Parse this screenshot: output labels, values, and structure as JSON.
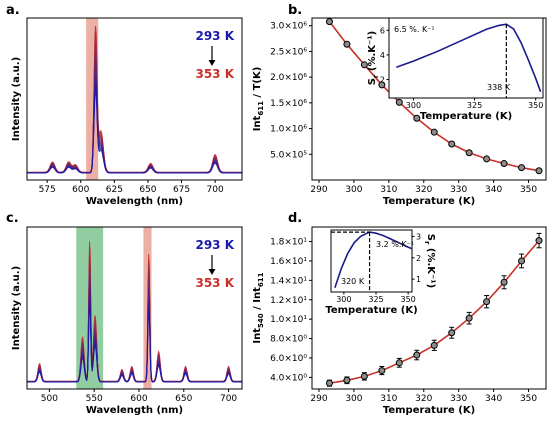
{
  "chart_data": [
    {
      "panel": "a.",
      "type": "line",
      "xlabel": "Wavelength (nm)",
      "ylabel": "Intensity (a.u.)",
      "xticks": [
        "575",
        "600",
        "625",
        "650",
        "675",
        "700"
      ],
      "xlim": [
        560,
        720
      ],
      "legend": {
        "top": "293 K",
        "bottom": "353 K",
        "top_color": "#1a1aa8",
        "bottom_color": "#c8322b",
        "placement": "top-right"
      },
      "highlight_bands": [
        {
          "from": 604,
          "to": 613,
          "color": "#e8a194"
        }
      ],
      "peaks": [
        {
          "x": 579,
          "height": 0.07
        },
        {
          "x": 591,
          "height": 0.07
        },
        {
          "x": 596,
          "height": 0.05
        },
        {
          "x": 611,
          "height": 1.0
        },
        {
          "x": 615,
          "height": 0.28
        },
        {
          "x": 652,
          "height": 0.06
        },
        {
          "x": 700,
          "height": 0.12
        }
      ],
      "series_count": 13,
      "series_colors_from": "#1a1aa8",
      "series_colors_to": "#c8322b"
    },
    {
      "panel": "b.",
      "type": "scatter",
      "xlabel": "Temperature (K)",
      "ylabel": "Int611 / T(K)",
      "ylabel_main": "Int",
      "ylabel_sub": "611",
      "ylabel_rest": " / T(K)",
      "xlim": [
        288,
        355
      ],
      "ylim": [
        0,
        3150000
      ],
      "xticks": [
        "290",
        "300",
        "310",
        "320",
        "330",
        "340",
        "350"
      ],
      "yticks": [
        "5.0×10⁵",
        "1.0×10⁶",
        "1.5×10⁶",
        "2.0×10⁶",
        "2.5×10⁶",
        "3.0×10⁶"
      ],
      "ytick_values": [
        500000,
        1000000,
        1500000,
        2000000,
        2500000,
        3000000
      ],
      "x": [
        293,
        298,
        303,
        308,
        313,
        318,
        323,
        328,
        333,
        338,
        343,
        348,
        353
      ],
      "y": [
        3080000,
        2640000,
        2240000,
        1850000,
        1510000,
        1200000,
        930000,
        700000,
        530000,
        410000,
        320000,
        240000,
        180000
      ],
      "fit_color": "#c8322b",
      "inset": {
        "xlabel": "Temperature (K)",
        "ylabel": "Sr (%.K⁻¹)",
        "ylabel_main": "S",
        "ylabel_sub": "r",
        "ylabel_rest": " (%.K⁻¹)",
        "xticks": [
          "300",
          "325",
          "350"
        ],
        "yticks": [
          "2",
          "4",
          "6"
        ],
        "xlim": [
          290,
          353
        ],
        "ylim": [
          0.5,
          7
        ],
        "annotation_peak": "6.5 %. K⁻¹",
        "annotation_temp": "338 K",
        "x": [
          293,
          300,
          310,
          320,
          330,
          335,
          338,
          341,
          344,
          347,
          350,
          352
        ],
        "y": [
          3.0,
          3.5,
          4.3,
          5.2,
          6.1,
          6.4,
          6.5,
          6.1,
          5.0,
          3.6,
          2.1,
          1.0
        ]
      }
    },
    {
      "panel": "c.",
      "type": "line",
      "xlabel": "Wavelength (nm)",
      "ylabel": "Intensity (a.u.)",
      "xticks": [
        "500",
        "550",
        "600",
        "650",
        "700"
      ],
      "xlim": [
        475,
        715
      ],
      "legend": {
        "top": "293 K",
        "bottom": "353 K",
        "top_color": "#1a1aa8",
        "bottom_color": "#c8322b",
        "placement": "top-right"
      },
      "highlight_bands": [
        {
          "from": 530,
          "to": 560,
          "color": "#7ec48f"
        },
        {
          "from": 605,
          "to": 614,
          "color": "#e8a194"
        }
      ],
      "peaks": [
        {
          "x": 489,
          "height": 0.12
        },
        {
          "x": 537,
          "height": 0.3
        },
        {
          "x": 545,
          "height": 0.97
        },
        {
          "x": 551,
          "height": 0.45
        },
        {
          "x": 581,
          "height": 0.08
        },
        {
          "x": 592,
          "height": 0.1
        },
        {
          "x": 611,
          "height": 0.88
        },
        {
          "x": 622,
          "height": 0.2
        },
        {
          "x": 652,
          "height": 0.1
        },
        {
          "x": 700,
          "height": 0.1
        }
      ],
      "series_count": 13,
      "series_colors_from": "#1a1aa8",
      "series_colors_to": "#c8322b"
    },
    {
      "panel": "d.",
      "type": "scatter",
      "xlabel": "Temperature (K)",
      "ylabel": "Int540 / Int611",
      "ylabel_main": "Int",
      "ylabel_sub": "540",
      "ylabel_rest": " / Int",
      "ylabel_sub2": "611",
      "xlim": [
        288,
        355
      ],
      "ylim": [
        2.8,
        19.5
      ],
      "xticks": [
        "290",
        "300",
        "310",
        "320",
        "330",
        "340",
        "350"
      ],
      "yticks": [
        "4.0×10⁰",
        "6.0×10⁰",
        "8.0×10⁰",
        "1.0×10¹",
        "1.2×10¹",
        "1.4×10¹",
        "1.6×10¹",
        "1.8×10¹"
      ],
      "ytick_values": [
        4,
        6,
        8,
        10,
        12,
        14,
        16,
        18
      ],
      "x": [
        293,
        298,
        303,
        308,
        313,
        318,
        323,
        328,
        333,
        338,
        343,
        348,
        353
      ],
      "y": [
        3.4,
        3.7,
        4.1,
        4.7,
        5.5,
        6.3,
        7.3,
        8.6,
        10.1,
        11.8,
        13.8,
        16.0,
        18.1
      ],
      "fit_color": "#c8322b",
      "inset": {
        "xlabel": "Temperature (K)",
        "ylabel": "Sr (%.K⁻¹)",
        "ylabel_main": "S",
        "ylabel_sub": "r",
        "ylabel_rest": " (%.K⁻¹)",
        "xticks": [
          "300",
          "325",
          "350"
        ],
        "yticks": [
          "1",
          "2",
          "3"
        ],
        "xlim": [
          290,
          353
        ],
        "ylim": [
          0.4,
          3.3
        ],
        "annotation_peak": "3.2 %.K⁻¹",
        "annotation_temp": "320 K",
        "x": [
          293,
          298,
          303,
          308,
          313,
          318,
          320,
          325,
          330,
          335,
          340,
          345,
          350,
          353
        ],
        "y": [
          0.6,
          1.5,
          2.2,
          2.7,
          3.0,
          3.15,
          3.2,
          3.15,
          3.05,
          2.92,
          2.78,
          2.64,
          2.5,
          2.42
        ]
      }
    }
  ]
}
